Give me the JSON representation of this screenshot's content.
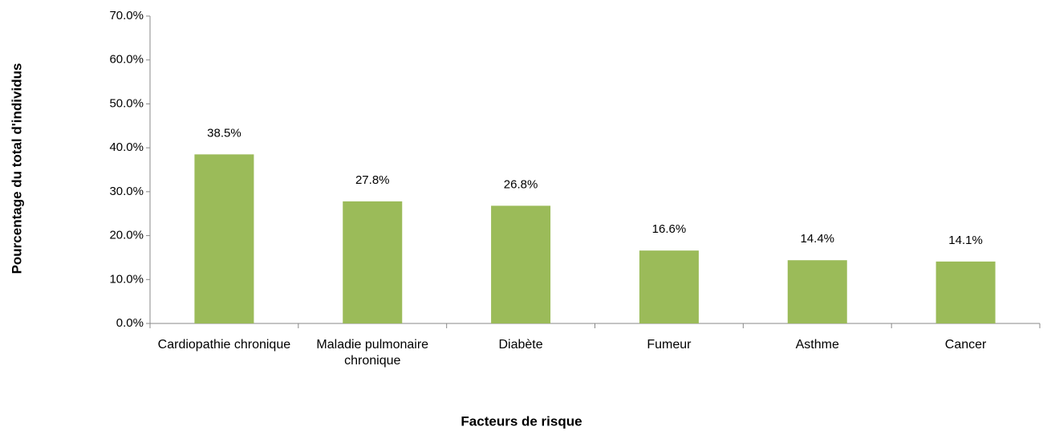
{
  "chart_data": {
    "type": "bar",
    "x_label": "Facteurs de risque",
    "y_label": "Pourcentage du total d'individus",
    "categories": [
      "Cardiopathie chronique",
      "Maladie pulmonaire chronique",
      "Diabète",
      "Fumeur",
      "Asthme",
      "Cancer"
    ],
    "values": [
      38.5,
      27.8,
      26.8,
      16.6,
      14.4,
      14.1
    ],
    "value_labels": [
      "38.5%",
      "27.8%",
      "26.8%",
      "16.6%",
      "14.4%",
      "14.1%"
    ],
    "color": "#9bbb59",
    "ylim": [
      0,
      70
    ],
    "yticks": [
      {
        "value": 0,
        "label": "0.0%"
      },
      {
        "value": 10,
        "label": "10.0%"
      },
      {
        "value": 20,
        "label": "20.0%"
      },
      {
        "value": 30,
        "label": "30.0%"
      },
      {
        "value": 40,
        "label": "40.0%"
      },
      {
        "value": 50,
        "label": "50.0%"
      },
      {
        "value": 60,
        "label": "60.0%"
      },
      {
        "value": 70,
        "label": "70.0%"
      }
    ],
    "grid": false
  }
}
